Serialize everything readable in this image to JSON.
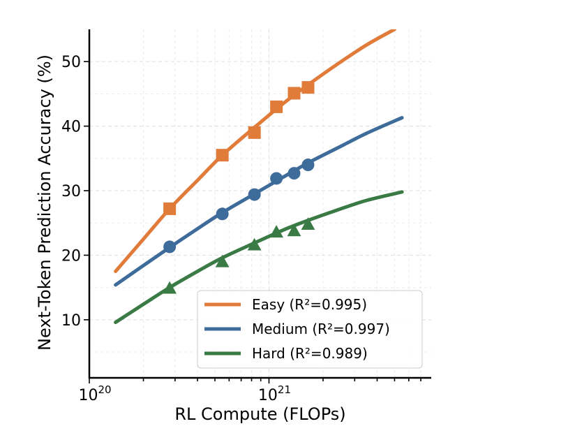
{
  "chart_data": {
    "type": "line",
    "xlabel": "RL Compute (FLOPs)",
    "ylabel": "Next-Token Prediction Accuracy (%)",
    "x_scale": "log",
    "xlim": [
      1e+20,
      8e+21
    ],
    "ylim": [
      1,
      55
    ],
    "x_ticks": [
      {
        "value": 1e+20,
        "base": "10",
        "exp": "20"
      },
      {
        "value": 1e+21,
        "base": "10",
        "exp": "21"
      }
    ],
    "y_ticks": [
      10,
      20,
      30,
      40,
      50
    ],
    "grid": true,
    "legend_position": "lower-right",
    "series": [
      {
        "name": "Easy (R²=0.995)",
        "color": "#e07b39",
        "marker": "square",
        "points": [
          {
            "x": 2.8e+20,
            "y": 27.2
          },
          {
            "x": 5.5e+20,
            "y": 35.5
          },
          {
            "x": 8.3e+20,
            "y": 39.0
          },
          {
            "x": 1.1e+21,
            "y": 43.0
          },
          {
            "x": 1.38e+21,
            "y": 45.1
          },
          {
            "x": 1.65e+21,
            "y": 46.0
          }
        ],
        "fit": [
          {
            "x": 1.4e+20,
            "y": 17.5
          },
          {
            "x": 2e+20,
            "y": 22.5
          },
          {
            "x": 2.8e+20,
            "y": 27.2
          },
          {
            "x": 4e+20,
            "y": 31.6
          },
          {
            "x": 5.5e+20,
            "y": 35.5
          },
          {
            "x": 8.3e+20,
            "y": 39.8
          },
          {
            "x": 1.2e+21,
            "y": 43.5
          },
          {
            "x": 1.65e+21,
            "y": 46.4
          },
          {
            "x": 2.4e+21,
            "y": 49.6
          },
          {
            "x": 3.5e+21,
            "y": 52.6
          },
          {
            "x": 5e+21,
            "y": 55.0
          }
        ]
      },
      {
        "name": "Medium (R²=0.997)",
        "color": "#3d6b9a",
        "marker": "circle",
        "points": [
          {
            "x": 2.8e+20,
            "y": 21.3
          },
          {
            "x": 5.5e+20,
            "y": 26.4
          },
          {
            "x": 8.3e+20,
            "y": 29.4
          },
          {
            "x": 1.1e+21,
            "y": 31.9
          },
          {
            "x": 1.38e+21,
            "y": 32.7
          },
          {
            "x": 1.65e+21,
            "y": 34.0
          }
        ],
        "fit": [
          {
            "x": 1.4e+20,
            "y": 15.4
          },
          {
            "x": 2e+20,
            "y": 18.4
          },
          {
            "x": 2.8e+20,
            "y": 21.2
          },
          {
            "x": 4e+20,
            "y": 24.1
          },
          {
            "x": 5.5e+20,
            "y": 26.6
          },
          {
            "x": 8.3e+20,
            "y": 29.5
          },
          {
            "x": 1.2e+21,
            "y": 32.1
          },
          {
            "x": 1.65e+21,
            "y": 34.3
          },
          {
            "x": 2.4e+21,
            "y": 36.6
          },
          {
            "x": 3.5e+21,
            "y": 38.9
          },
          {
            "x": 5.5e+21,
            "y": 41.3
          }
        ]
      },
      {
        "name": "Hard (R²=0.989)",
        "color": "#3a7a44",
        "marker": "triangle",
        "points": [
          {
            "x": 2.8e+20,
            "y": 14.9
          },
          {
            "x": 5.5e+20,
            "y": 19.0
          },
          {
            "x": 8.3e+20,
            "y": 21.6
          },
          {
            "x": 1.1e+21,
            "y": 23.6
          },
          {
            "x": 1.38e+21,
            "y": 23.8
          },
          {
            "x": 1.65e+21,
            "y": 24.8
          }
        ],
        "fit": [
          {
            "x": 1.4e+20,
            "y": 9.6
          },
          {
            "x": 2e+20,
            "y": 12.4
          },
          {
            "x": 2.8e+20,
            "y": 15.0
          },
          {
            "x": 4e+20,
            "y": 17.5
          },
          {
            "x": 5.5e+20,
            "y": 19.6
          },
          {
            "x": 8.3e+20,
            "y": 21.9
          },
          {
            "x": 1.2e+21,
            "y": 23.9
          },
          {
            "x": 1.65e+21,
            "y": 25.4
          },
          {
            "x": 2.4e+21,
            "y": 27.0
          },
          {
            "x": 3.5e+21,
            "y": 28.5
          },
          {
            "x": 5.5e+21,
            "y": 29.8
          }
        ]
      }
    ]
  }
}
